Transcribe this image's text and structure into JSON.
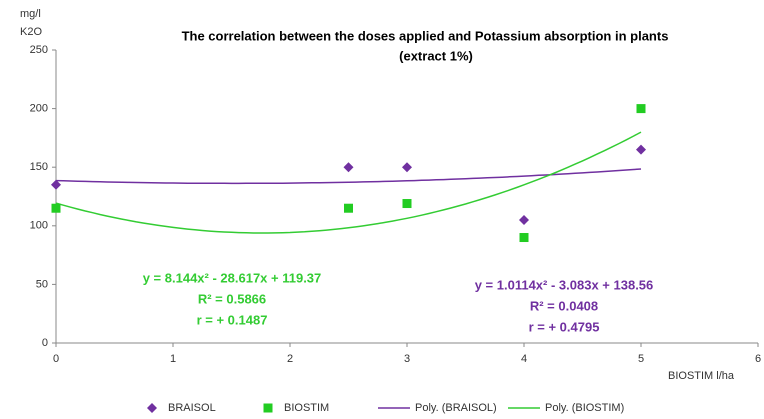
{
  "chart_data": {
    "type": "scatter",
    "title": [
      "The correlation between the doses applied and  Potassium  absorption in plants",
      "(extract 1%)"
    ],
    "y_label": [
      "mg/l",
      "K2O"
    ],
    "x_label": "BIOSTIM l/ha",
    "x": [
      0,
      2.5,
      3,
      4,
      5
    ],
    "series": [
      {
        "name": "BRAISOL",
        "color": "#7030a0",
        "marker": "diamond",
        "values": [
          135,
          150,
          150,
          105,
          165
        ],
        "trendline": {
          "name": "Poly. (BRAISOL)",
          "type": "poly",
          "order": 2,
          "color": "#7030a0",
          "annotation": [
            "y = 1.0114x² - 3.083x + 138.56",
            "R² = 0.0408",
            "r = + 0.4795"
          ]
        }
      },
      {
        "name": "BIOSTIM",
        "color": "#22cc22",
        "marker": "square",
        "values": [
          115,
          115,
          119,
          90,
          200
        ],
        "trendline": {
          "name": "Poly. (BIOSTIM)",
          "type": "poly",
          "order": 2,
          "color": "#33cc33",
          "annotation": [
            "y = 8.144x² - 28.617x + 119.37",
            "R² = 0.5866",
            "r = + 0.1487"
          ]
        }
      }
    ],
    "xlim": [
      0,
      6
    ],
    "xticks": [
      0,
      1,
      2,
      3,
      4,
      5,
      6
    ],
    "ylim": [
      0,
      250
    ],
    "yticks": [
      0,
      50,
      100,
      150,
      200,
      250
    ],
    "grid": false,
    "legend": "bottom"
  }
}
